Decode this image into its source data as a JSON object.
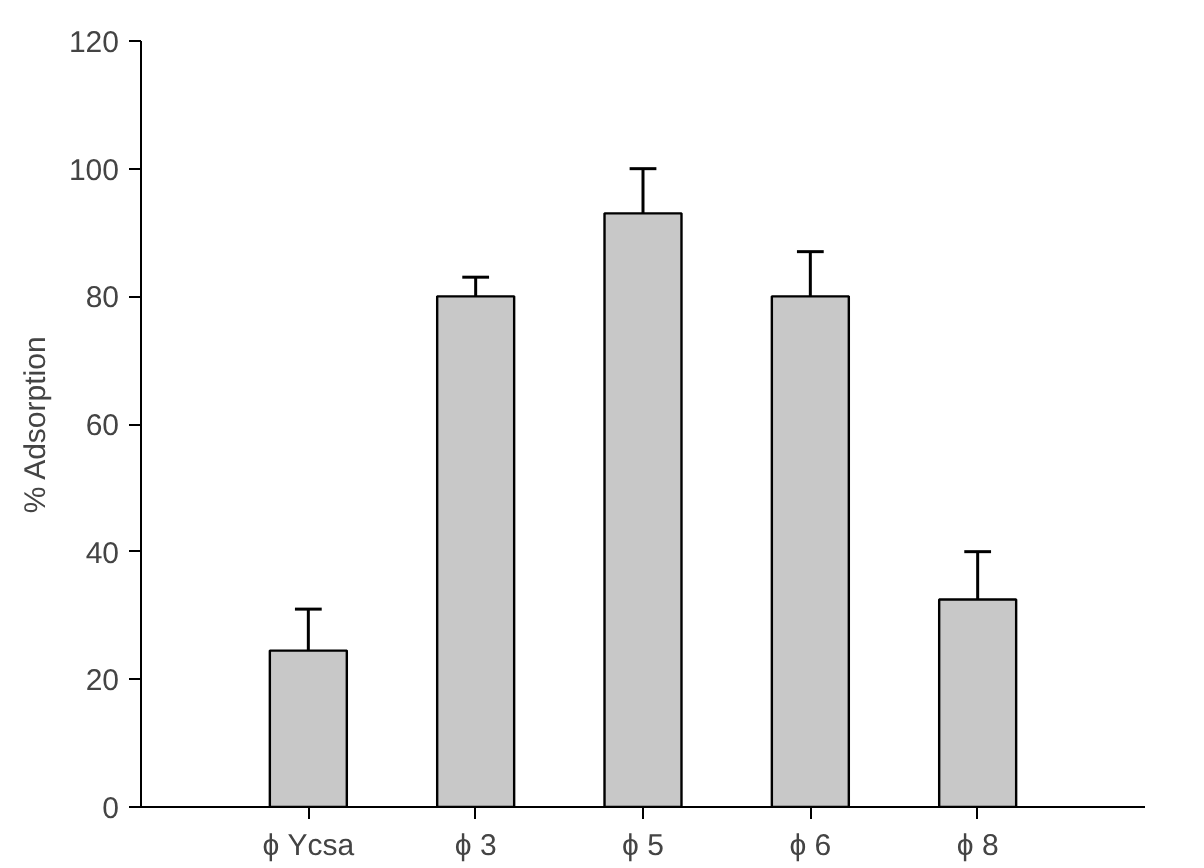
{
  "chart_data": {
    "type": "bar",
    "ylabel": "% Adsorption",
    "categories": [
      "ϕ Ycsa",
      "ϕ 3",
      "ϕ 5",
      "ϕ 6",
      "ϕ 8"
    ],
    "values": [
      24.5,
      80,
      93,
      80,
      32.5
    ],
    "errors": [
      [
        24.5,
        31
      ],
      [
        80,
        83
      ],
      [
        93,
        100
      ],
      [
        80,
        87
      ],
      [
        32.5,
        40
      ]
    ],
    "color": "#c8c8c8",
    "ylim": [
      0,
      120
    ],
    "yticks": [
      0,
      20,
      40,
      60,
      80,
      100,
      120
    ],
    "grid": false
  }
}
